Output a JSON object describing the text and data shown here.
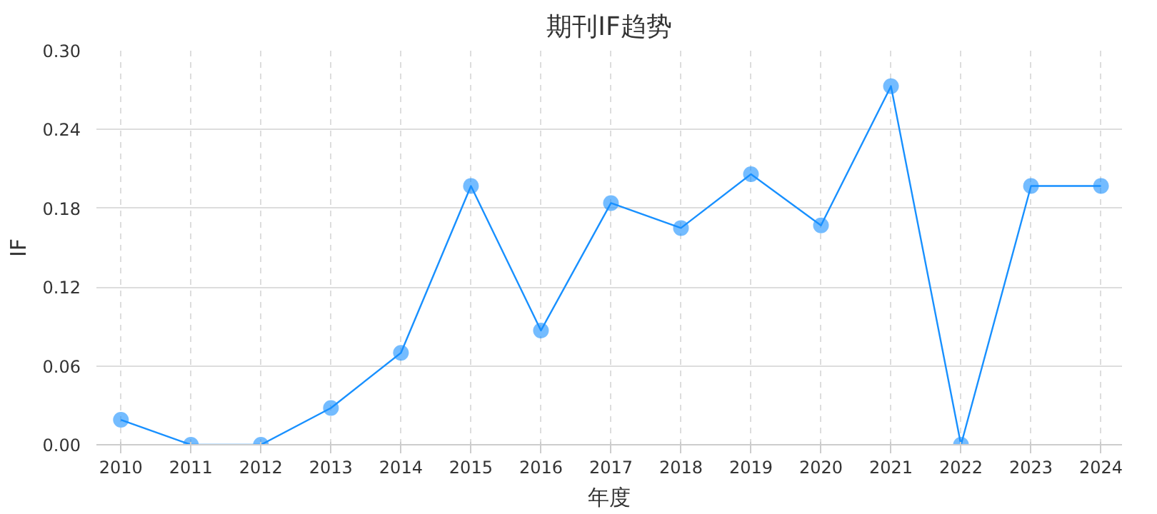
{
  "chart_data": {
    "type": "line",
    "title": "期刊IF趋势",
    "xlabel": "年度",
    "ylabel": "IF",
    "categories": [
      "2010",
      "2011",
      "2012",
      "2013",
      "2014",
      "2015",
      "2016",
      "2017",
      "2018",
      "2019",
      "2020",
      "2021",
      "2022",
      "2023",
      "2024"
    ],
    "series": [
      {
        "color": "#1890ff",
        "values": [
          0.019,
          0,
          0,
          0.028,
          0.07,
          0.197,
          0.087,
          0.184,
          0.165,
          0.206,
          0.167,
          0.273,
          0,
          0.197,
          0.197
        ]
      }
    ],
    "ylim": [
      0,
      0.3
    ],
    "yticks": [
      {
        "value": 0,
        "label": "0.00"
      },
      {
        "value": 0.06,
        "label": "0.06"
      },
      {
        "value": 0.12,
        "label": "0.12"
      },
      {
        "value": 0.18,
        "label": "0.18"
      },
      {
        "value": 0.24,
        "label": "0.24"
      },
      {
        "value": 0.3,
        "label": "0.30"
      }
    ],
    "grid": true,
    "marker": "circle",
    "line_style": "solid"
  }
}
